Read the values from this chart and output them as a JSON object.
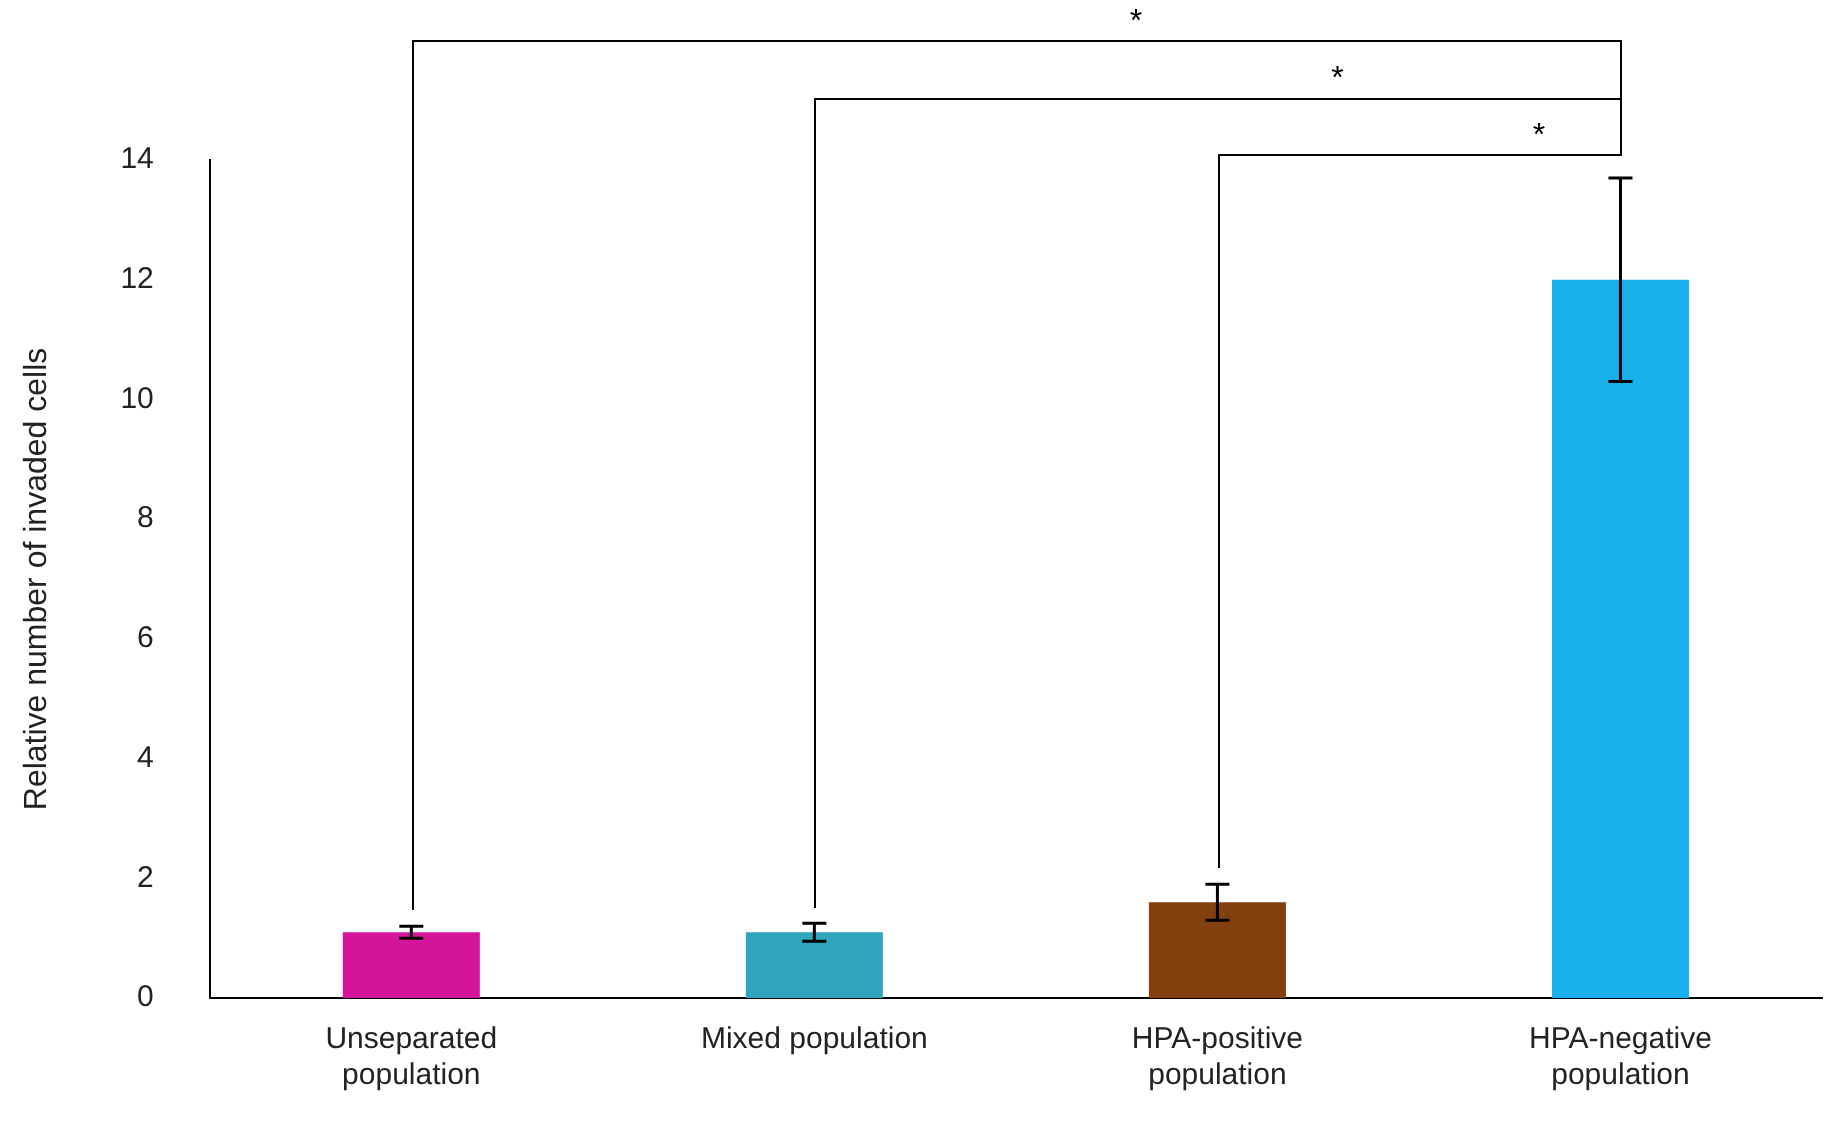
{
  "chart_data": {
    "type": "bar",
    "ylabel": "Relative number of invaded cells",
    "categories": [
      "Unseparated population",
      "Mixed population",
      "HPA-positive population",
      "HPA-negative population"
    ],
    "values": [
      1.1,
      1.1,
      1.6,
      12.0
    ],
    "colors": [
      "#d4159b",
      "#2fa4bd",
      "#843f0e",
      "#18b0ea"
    ],
    "errors": [
      0.1,
      0.15,
      0.3,
      1.7
    ],
    "ylim": [
      0,
      14
    ],
    "yticks": [
      0,
      2,
      4,
      6,
      8,
      10,
      12,
      14
    ],
    "grid": false,
    "legend": false,
    "annotations": [
      "*",
      "*",
      "*"
    ]
  }
}
